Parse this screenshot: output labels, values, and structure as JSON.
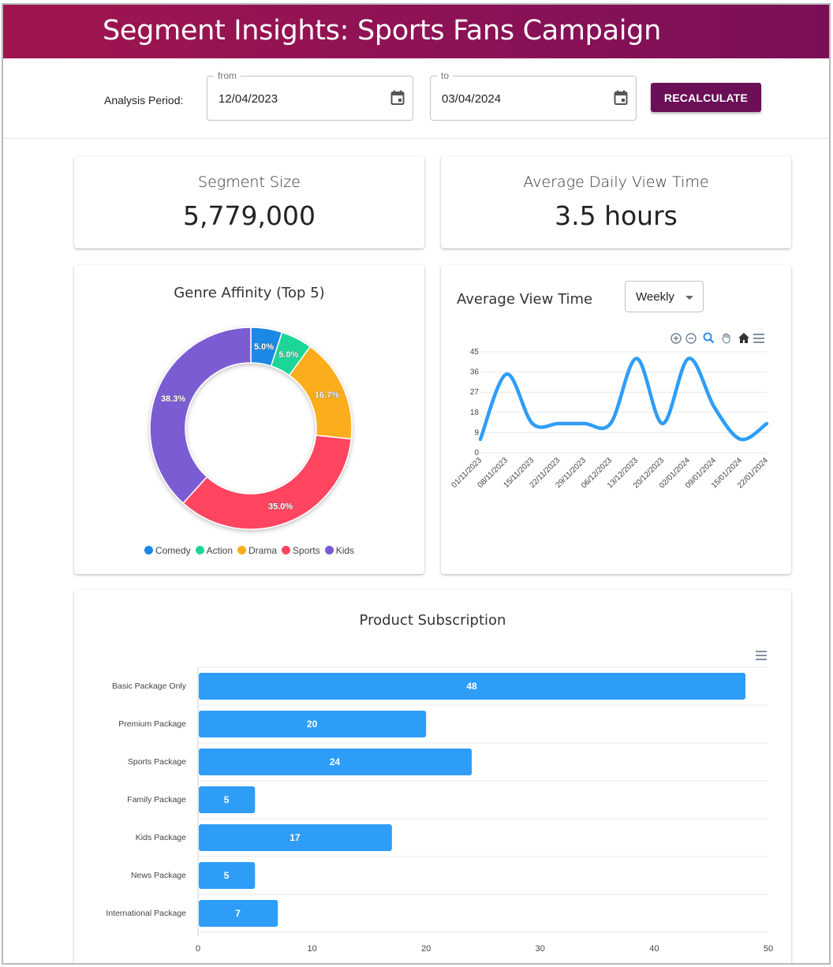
{
  "header": {
    "title": "Segment Insights: Sports Fans Campaign"
  },
  "filters": {
    "period_label": "Analysis Period:",
    "from_label": "from",
    "from_value": "12/04/2023",
    "to_label": "to",
    "to_value": "03/04/2024",
    "recalculate_label": "RECALCULATE"
  },
  "kpis": {
    "segment_size": {
      "title": "Segment Size",
      "value": "5,779,000"
    },
    "avg_daily_view": {
      "title": "Average Daily View Time",
      "value": "3.5 hours"
    }
  },
  "view_time": {
    "title": "Average View Time",
    "interval_value": "Weekly"
  },
  "colors": {
    "header_start": "#a0154f",
    "header_end": "#7a0f58",
    "button": "#6b0f57",
    "bar": "#2e9df7",
    "line": "#2e9df7"
  },
  "chart_data": [
    {
      "type": "pie",
      "title": "Genre Affinity (Top 5)",
      "donut": true,
      "categories": [
        "Comedy",
        "Action",
        "Drama",
        "Sports",
        "Kids"
      ],
      "values": [
        5.0,
        5.0,
        16.7,
        35.0,
        38.3
      ],
      "labels": [
        "5.0%",
        "5.0%",
        "16.7%",
        "35.0%",
        "38.3%"
      ],
      "colors": [
        "#1e88e5",
        "#1ed699",
        "#fbad1d",
        "#ff455f",
        "#7b5bd2"
      ],
      "legend": "bottom"
    },
    {
      "type": "line",
      "title": "Average View Time",
      "x": [
        "01/11/2023",
        "08/11/2023",
        "15/11/2023",
        "22/11/2023",
        "29/11/2023",
        "06/12/2023",
        "13/12/2023",
        "20/12/2023",
        "02/01/2024",
        "09/01/2024",
        "15/01/2024",
        "22/01/2024"
      ],
      "points": [
        [
          0,
          6
        ],
        [
          1,
          35
        ],
        [
          2,
          13
        ],
        [
          3,
          13
        ],
        [
          4,
          13
        ],
        [
          5,
          13
        ],
        [
          6,
          42
        ],
        [
          7,
          13
        ],
        [
          8,
          42
        ],
        [
          9,
          20
        ],
        [
          10,
          6
        ],
        [
          11,
          13
        ]
      ],
      "ylim": [
        0,
        45
      ],
      "yticks": [
        "0",
        "9",
        "18",
        "27",
        "36",
        "45"
      ],
      "grid": true
    },
    {
      "type": "bar",
      "orientation": "horizontal",
      "title": "Product Subscription",
      "categories": [
        "Basic Package Only",
        "Premium Package",
        "Sports Package",
        "Family Package",
        "Kids Package",
        "News Package",
        "International Package"
      ],
      "values": [
        48,
        20,
        24,
        5,
        17,
        5,
        7
      ],
      "value_labels": [
        "48",
        "20",
        "24",
        "5",
        "17",
        "5",
        "7"
      ],
      "xlim": [
        0,
        50
      ],
      "xticks": [
        "0",
        "10",
        "20",
        "30",
        "40",
        "50"
      ],
      "grid": true
    }
  ]
}
